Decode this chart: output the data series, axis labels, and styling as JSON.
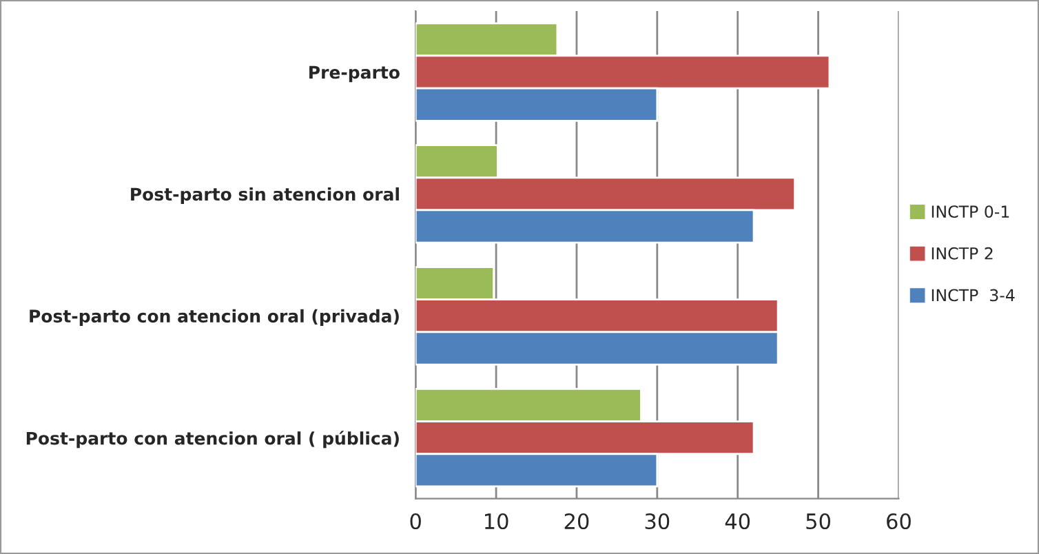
{
  "chart_data": {
    "type": "bar",
    "orientation": "horizontal",
    "categories": [
      "Pre-parto",
      "Post-parto sin atencion oral",
      "Post-parto con atencion oral (privada)",
      "Post-parto con atencion oral ( pública)"
    ],
    "series": [
      {
        "name": "INCTP 0-1",
        "color": "#9bbb59",
        "values": [
          17.6,
          10.2,
          9.7,
          28
        ]
      },
      {
        "name": "INCTP 2",
        "color": "#c0504d",
        "values": [
          51.4,
          47.1,
          45,
          42
        ]
      },
      {
        "name": "INCTP  3-4",
        "color": "#4f81bd",
        "values": [
          30,
          42,
          45,
          30
        ]
      }
    ],
    "xlim": [
      0,
      60
    ],
    "xticks": [
      0,
      10,
      20,
      30,
      40,
      50,
      60
    ],
    "grid": "x",
    "legend": "right"
  }
}
